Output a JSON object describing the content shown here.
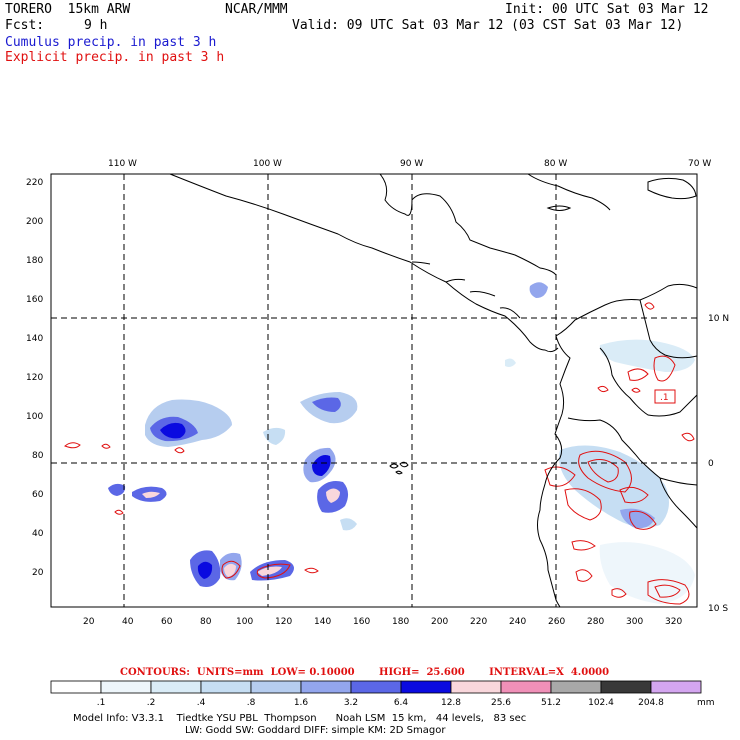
{
  "header": {
    "model": "TORERO  15km ARW",
    "center": "NCAR/MMM",
    "init": "Init: 00 UTC Sat 03 Mar 12",
    "fcst_label": "Fcst:",
    "fcst_value": "9 h",
    "valid": "Valid: 09 UTC Sat 03 Mar 12 (03 CST Sat 03 Mar 12)",
    "field1": "Cumulus precip. in past 3 h",
    "field2": "Explicit precip. in past 3 h"
  },
  "colors": {
    "field1": "#1a1ad0",
    "field2": "#e01010",
    "coast": "#000000",
    "grid": "#000000"
  },
  "map": {
    "lon_labels": [
      "110 W",
      "100 W",
      "90 W",
      "80 W",
      "70 W"
    ],
    "lat_labels": [
      "10 N",
      "0",
      "10 S"
    ],
    "y_ticks": [
      "220",
      "200",
      "180",
      "160",
      "140",
      "120",
      "100",
      "80",
      "60",
      "40",
      "20"
    ],
    "x_ticks": [
      "20",
      "40",
      "60",
      "80",
      "100",
      "120",
      "140",
      "160",
      "180",
      "200",
      "220",
      "240",
      "260",
      "280",
      "300",
      "320"
    ],
    "box_label": ".1"
  },
  "contours_line": "CONTOURS:  UNITS=mm  LOW= 0.10000       HIGH=  25.600       INTERVAL=X  4.0000",
  "legend": {
    "labels": [
      ".1",
      ".2",
      ".4",
      ".8",
      "1.6",
      "3.2",
      "6.4",
      "12.8",
      "25.6",
      "51.2",
      "102.4",
      "204.8"
    ],
    "unit": "mm",
    "colors": [
      "#ffffff",
      "#eef6fb",
      "#daecf7",
      "#c6def3",
      "#b6cdef",
      "#93a6ed",
      "#5b67e6",
      "#0a0ae0",
      "#f9d7dc",
      "#f090b8",
      "#a8a8a8",
      "#383838",
      "#d4a6f0"
    ]
  },
  "footer": {
    "line1": "Model Info: V3.3.1    Tiedtke YSU PBL  Thompson      Noah LSM  15 km,   44 levels,   83 sec",
    "line2": "LW: Godd SW: Goddard DIFF: simple KM: 2D Smagor"
  }
}
